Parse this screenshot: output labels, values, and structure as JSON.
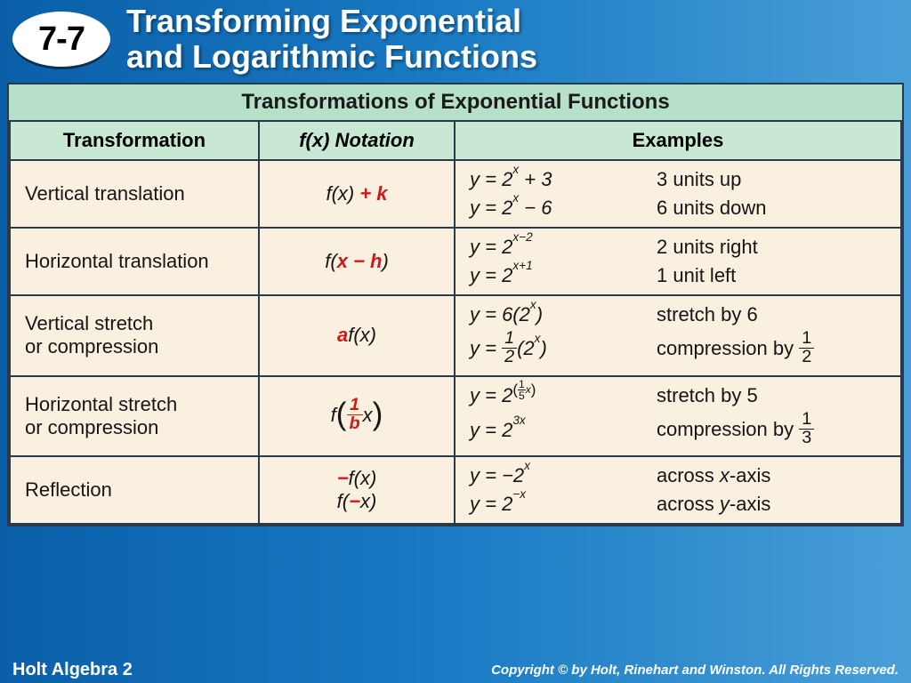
{
  "header": {
    "section_number": "7-7",
    "title_line1": "Transforming Exponential",
    "title_line2": "and Logarithmic Functions"
  },
  "table": {
    "title": "Transformations of Exponential Functions",
    "columns": [
      "Transformation",
      "f(x) Notation",
      "Examples"
    ],
    "header_bg": "#c8e8d4",
    "title_bg": "#b7e0c9",
    "cell_bg": "#faf0e0",
    "border_color": "#2a3a4a",
    "highlight_color": "#d01818",
    "rows": [
      {
        "transformation": "Vertical translation",
        "notation_base": "f(x)",
        "notation_highlight": " + k",
        "examples": [
          {
            "eq_html": "y = 2<sup>x</sup> + 3",
            "desc": "3 units up"
          },
          {
            "eq_html": "y = 2<sup>x</sup> − 6",
            "desc": "6 units down"
          }
        ]
      },
      {
        "transformation": "Horizontal translation",
        "notation_prefix": "f(",
        "notation_highlight": "x − h",
        "notation_suffix": ")",
        "examples": [
          {
            "eq_html": "y = 2<sup>x−2</sup>",
            "desc": "2 units right"
          },
          {
            "eq_html": "y = 2<sup>x+1</sup>",
            "desc": "1 unit left"
          }
        ]
      },
      {
        "transformation": "Vertical stretch or compression",
        "notation_highlight": "a",
        "notation_suffix": "f(x)",
        "examples": [
          {
            "eq_html": "y = 6(2<sup>x</sup>)",
            "desc": "stretch by 6"
          },
          {
            "eq_html": "y = FRAC12(2<sup>x</sup>)",
            "desc_html": "compression by FRAC12"
          }
        ]
      },
      {
        "transformation": "Horizontal stretch or compression",
        "notation_special": "f_paren_1overb_x",
        "examples": [
          {
            "eq_html": "y = 2SUPFRAC15X",
            "desc": "stretch by 5"
          },
          {
            "eq_html": "y = 2<sup>3x</sup>",
            "desc_html": "compression by FRAC13"
          }
        ]
      },
      {
        "transformation": "Reflection",
        "notation_lines": [
          {
            "highlight": "−",
            "rest": "f(x)"
          },
          {
            "prefix": "f(",
            "highlight": "−",
            "suffix": "x)"
          }
        ],
        "examples": [
          {
            "eq_html": "y = −2<sup>x</sup>",
            "desc_html": "across <span class='itx'>x</span>-axis"
          },
          {
            "eq_html": "y = 2<sup>−x</sup>",
            "desc_html": "across <span class='itx'>y</span>-axis"
          }
        ]
      }
    ]
  },
  "footer": {
    "left": "Holt Algebra 2",
    "right": "Copyright © by Holt, Rinehart and Winston. All Rights Reserved."
  },
  "colors": {
    "bg_gradient_from": "#0a5fa8",
    "bg_gradient_to": "#4a9fd8",
    "text_white": "#ffffff"
  }
}
